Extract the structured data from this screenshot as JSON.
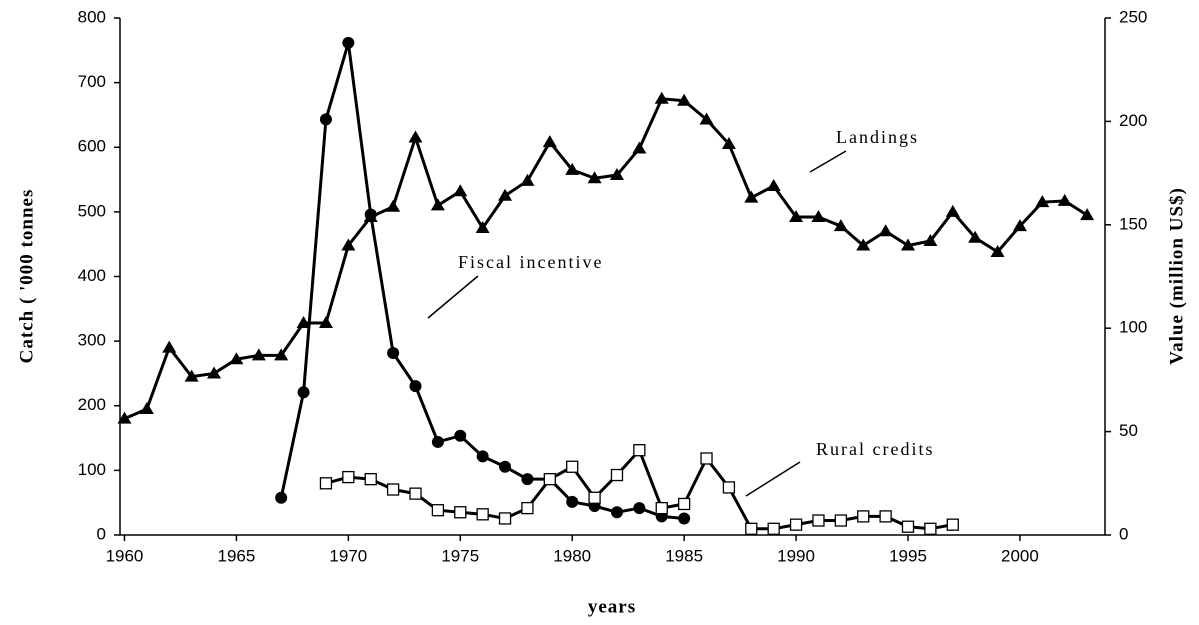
{
  "chart_data": {
    "type": "line",
    "xlabel": "years",
    "ylabel": "Catch ( '000 tonnes",
    "y2label": "Value (million US$)",
    "xlim": [
      1959.8,
      2003.8
    ],
    "xticks": [
      1960,
      1965,
      1970,
      1975,
      1980,
      1985,
      1990,
      1995,
      2000
    ],
    "ylim": [
      0,
      800
    ],
    "yticks": [
      0,
      100,
      200,
      300,
      400,
      500,
      600,
      700,
      800
    ],
    "y2lim": [
      0,
      250
    ],
    "y2ticks": [
      0,
      50,
      100,
      150,
      200,
      250
    ],
    "annotations": [
      "Landings",
      "Fiscal incentive",
      "Rural credits"
    ],
    "series": [
      {
        "name": "Landings",
        "color": "#000000",
        "marker": "triangle",
        "x": [
          1960,
          1961,
          1962,
          1963,
          1964,
          1965,
          1966,
          1967,
          1968,
          1969,
          1970,
          1971,
          1972,
          1973,
          1974,
          1975,
          1976,
          1977,
          1978,
          1979,
          1980,
          1981,
          1982,
          1983,
          1984,
          1985,
          1986,
          1987,
          1988,
          1989,
          1990,
          1991,
          1992,
          1993,
          1994,
          1995,
          1996,
          1997,
          1998,
          1999,
          2000,
          2001,
          2002,
          2003
        ],
        "values": [
          180,
          195,
          290,
          245,
          250,
          272,
          278,
          278,
          328,
          328,
          448,
          492,
          508,
          615,
          510,
          532,
          475,
          525,
          548,
          608,
          565,
          552,
          557,
          598,
          675,
          672,
          643,
          605,
          522,
          540,
          492,
          492,
          478,
          448,
          470,
          448,
          455,
          500,
          460,
          438,
          478,
          515,
          517,
          495
        ]
      },
      {
        "name": "Fiscal incentive",
        "color": "#000000",
        "marker": "circle",
        "axis": "y2",
        "x": [
          1967,
          1968,
          1969,
          1970,
          1971,
          1972,
          1973,
          1974,
          1975,
          1976,
          1977,
          1978,
          1979,
          1980,
          1981,
          1982,
          1983,
          1984,
          1985
        ],
        "values": [
          18,
          69,
          201,
          238,
          155,
          88,
          72,
          45,
          48,
          38,
          33,
          27,
          27,
          16,
          14,
          11,
          13,
          9,
          8
        ]
      },
      {
        "name": "Rural credits",
        "color": "#000000",
        "marker": "square",
        "axis": "y2",
        "x": [
          1969,
          1970,
          1971,
          1972,
          1973,
          1974,
          1975,
          1976,
          1977,
          1978,
          1979,
          1980,
          1981,
          1982,
          1983,
          1984,
          1985,
          1986,
          1987,
          1988,
          1989,
          1990,
          1991,
          1992,
          1993,
          1994,
          1995,
          1996,
          1997
        ],
        "values": [
          25,
          28,
          27,
          22,
          20,
          12,
          11,
          10,
          8,
          13,
          27,
          33,
          18,
          29,
          41,
          13,
          15,
          37,
          23,
          3,
          3,
          5,
          7,
          7,
          9,
          9,
          4,
          3,
          5
        ]
      }
    ]
  }
}
